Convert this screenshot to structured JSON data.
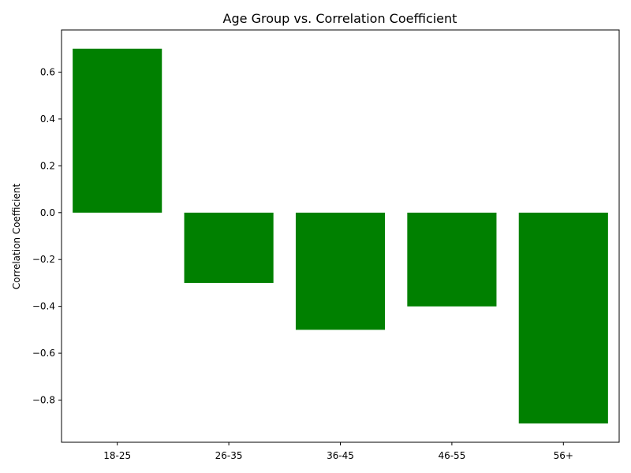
{
  "chart_data": {
    "type": "bar",
    "title": "Age Group vs. Correlation Coefficient",
    "xlabel": "",
    "ylabel": "Correlation Coefficient",
    "categories": [
      "18-25",
      "26-35",
      "36-45",
      "46-55",
      "56+"
    ],
    "values": [
      0.7,
      -0.3,
      -0.5,
      -0.4,
      -0.9
    ],
    "ylim": [
      -0.98,
      0.78
    ],
    "yticks": [
      0.6,
      0.4,
      0.2,
      0.0,
      -0.2,
      -0.4,
      -0.6,
      -0.8
    ],
    "ytick_labels": [
      "0.6",
      "0.4",
      "0.2",
      "0.0",
      "−0.2",
      "−0.4",
      "−0.6",
      "−0.8"
    ],
    "bar_color": "#008000",
    "grid": false,
    "legend": "none"
  }
}
